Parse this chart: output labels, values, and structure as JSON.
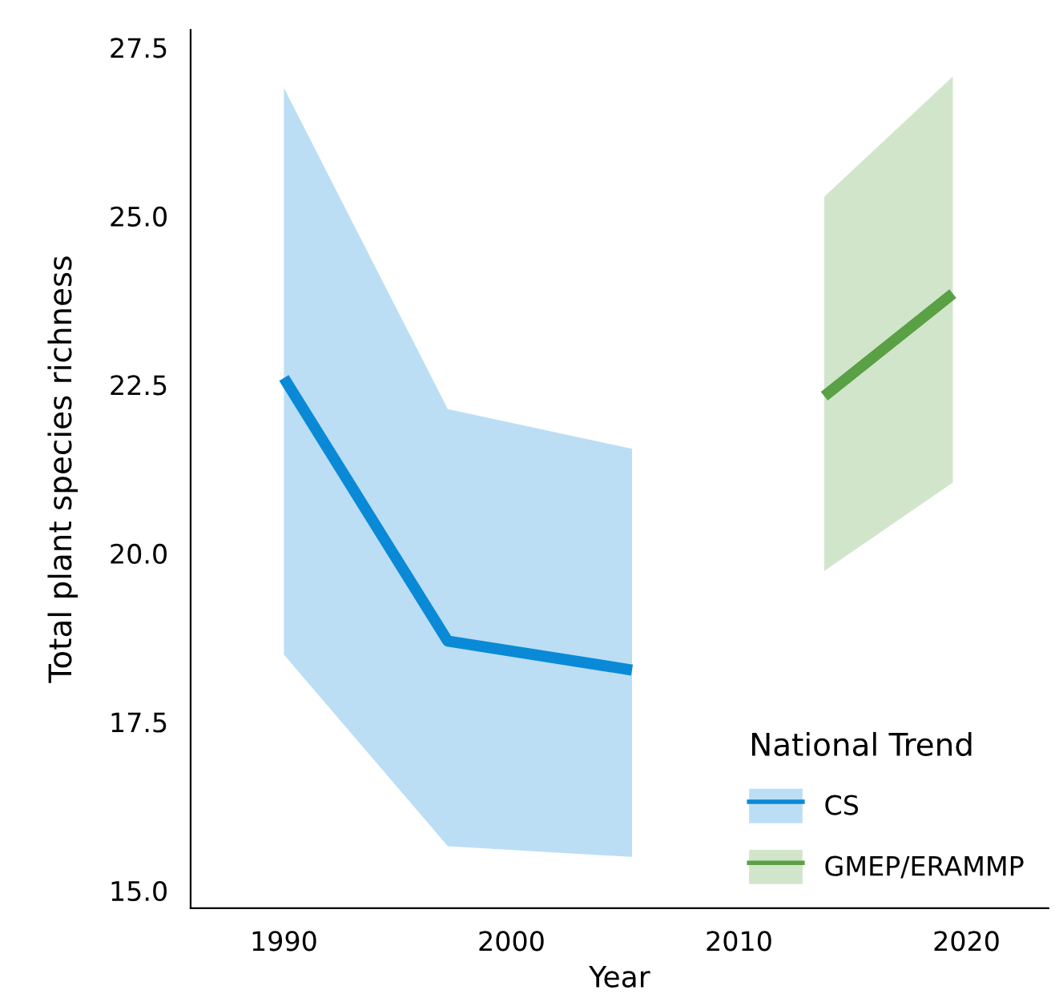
{
  "chart_data": {
    "type": "line",
    "xlabel": "Year",
    "ylabel": "Total plant species richness",
    "legend_title": "National Trend",
    "legend": "bottom right",
    "grid": false,
    "marker": "none",
    "line_style": "solid",
    "xlim": [
      1985.9,
      2023.6
    ],
    "ylim": [
      14.74,
      27.76
    ],
    "xticks": [
      1990,
      2000,
      2010,
      2020
    ],
    "yticks": [
      {
        "value": 15,
        "label": "15.0"
      },
      {
        "value": 17.5,
        "label": "17.5"
      },
      {
        "value": 20,
        "label": "20.0"
      },
      {
        "value": 22.5,
        "label": "22.5"
      },
      {
        "value": 25,
        "label": "25.0"
      },
      {
        "value": 27.5,
        "label": "27.5"
      }
    ],
    "series": [
      {
        "name": "CS",
        "color": "#0a8ad6",
        "x": [
          1990,
          1997.2,
          2005.3
        ],
        "values": [
          22.6,
          18.7,
          18.27
        ],
        "lower": [
          18.5,
          15.66,
          15.5
        ],
        "upper": [
          26.9,
          22.14,
          21.55
        ]
      },
      {
        "name": "GMEP/ERAMMP",
        "color": "#5aa045",
        "x": [
          2013.75,
          2019.4
        ],
        "values": [
          22.33,
          23.85
        ],
        "lower": [
          19.74,
          21.05
        ],
        "upper": [
          25.29,
          27.07
        ]
      }
    ]
  }
}
